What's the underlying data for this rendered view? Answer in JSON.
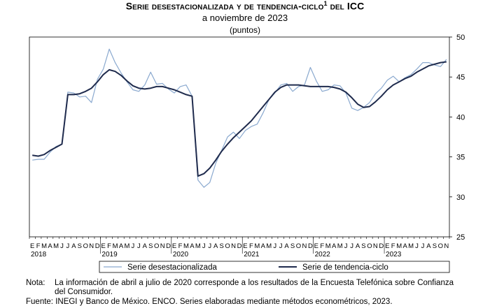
{
  "header": {
    "title_main": "Serie desestacionalizada y de tendencia-ciclo",
    "title_sup": "1",
    "title_end": " del ICC",
    "subtitle": "a noviembre de 2023",
    "units": "(puntos)"
  },
  "chart_data": {
    "type": "line",
    "ylim": [
      25,
      50
    ],
    "yticks": [
      25,
      30,
      35,
      40,
      45,
      50
    ],
    "month_labels": [
      "E",
      "F",
      "M",
      "A",
      "M",
      "J",
      "J",
      "A",
      "S",
      "O",
      "N",
      "D"
    ],
    "year_labels": [
      {
        "year": "2018",
        "index": 0
      },
      {
        "year": "2019",
        "index": 12
      },
      {
        "year": "2020",
        "index": 24
      },
      {
        "year": "2021",
        "index": 36
      },
      {
        "year": "2022",
        "index": 48
      },
      {
        "year": "2023",
        "index": 60
      }
    ],
    "x_start": "2018-01",
    "x_end": "2023-11",
    "series": [
      {
        "name": "Serie desestacionalizada",
        "color": "#8aa9cf",
        "values": [
          34.6,
          34.7,
          34.7,
          35.6,
          36.3,
          36.6,
          43.1,
          43.0,
          42.5,
          42.6,
          41.8,
          44.7,
          46.0,
          48.5,
          46.8,
          45.5,
          44.4,
          43.4,
          43.2,
          44.0,
          45.6,
          44.1,
          44.2,
          43.5,
          43.0,
          43.8,
          44.0,
          42.6,
          32.1,
          31.2,
          31.8,
          34.2,
          35.8,
          37.5,
          38.1,
          37.3,
          38.3,
          38.8,
          39.1,
          40.5,
          42.2,
          43.0,
          44.0,
          44.2,
          43.2,
          43.8,
          44.0,
          46.2,
          44.5,
          43.2,
          43.4,
          44.0,
          43.9,
          43.0,
          41.1,
          40.8,
          41.2,
          41.8,
          42.9,
          43.6,
          44.6,
          45.1,
          44.4,
          44.9,
          45.3,
          46.0,
          46.8,
          46.8,
          46.5,
          46.3,
          47.2
        ]
      },
      {
        "name": "Serie de tendencia-ciclo",
        "color": "#1f2b4d",
        "values": [
          35.2,
          35.1,
          35.3,
          35.8,
          36.2,
          36.6,
          42.8,
          42.8,
          42.9,
          43.2,
          43.6,
          44.4,
          45.3,
          45.9,
          45.7,
          45.2,
          44.5,
          43.9,
          43.6,
          43.5,
          43.6,
          43.8,
          43.8,
          43.6,
          43.4,
          43.1,
          42.8,
          42.6,
          32.6,
          32.9,
          33.6,
          34.6,
          35.7,
          36.6,
          37.4,
          38.1,
          38.8,
          39.5,
          40.4,
          41.3,
          42.2,
          43.1,
          43.7,
          44.0,
          44.0,
          44.0,
          43.9,
          43.8,
          43.8,
          43.8,
          43.8,
          43.7,
          43.5,
          43.1,
          42.4,
          41.6,
          41.2,
          41.3,
          41.9,
          42.6,
          43.4,
          44.0,
          44.4,
          44.8,
          45.1,
          45.6,
          46.0,
          46.4,
          46.6,
          46.8,
          46.9
        ]
      }
    ]
  },
  "footer": {
    "note_label": "Nota:",
    "note_text": "La información de abril a julio de 2020 corresponde a los resultados de la Encuesta Telefónica sobre Confianza del Consumidor.",
    "source_text": "Fuente: INEGI y Banco de México. ENCO. Series elaboradas mediante métodos econométricos, 2023."
  }
}
